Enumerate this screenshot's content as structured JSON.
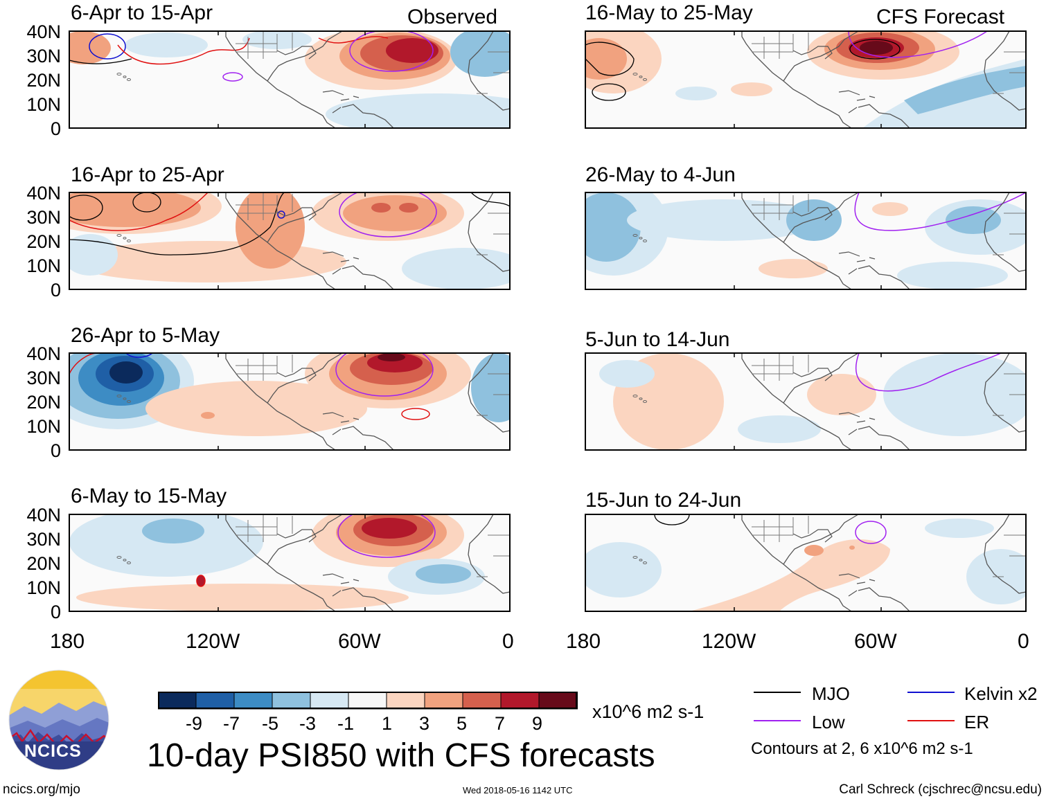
{
  "panels_left": [
    {
      "period": "6-Apr to 15-Apr",
      "tag": "Observed"
    },
    {
      "period": "16-Apr to 25-Apr",
      "tag": ""
    },
    {
      "period": "26-Apr to 5-May",
      "tag": ""
    },
    {
      "period": "6-May to 15-May",
      "tag": ""
    }
  ],
  "panels_right": [
    {
      "period": "16-May to 25-May",
      "tag": "CFS Forecast"
    },
    {
      "period": "26-May to 4-Jun",
      "tag": ""
    },
    {
      "period": "5-Jun to 14-Jun",
      "tag": ""
    },
    {
      "period": "15-Jun to 24-Jun",
      "tag": ""
    }
  ],
  "lat_labels": [
    "40N",
    "30N",
    "20N",
    "10N",
    "0"
  ],
  "lon_labels": [
    "180",
    "120W",
    "60W",
    "0"
  ],
  "colorbar": {
    "labels": [
      "-9",
      "-7",
      "-5",
      "-3",
      "-1",
      "1",
      "3",
      "5",
      "7",
      "9"
    ],
    "units": "x10^6 m2 s-1",
    "colors": [
      "#0b2a5c",
      "#1f5fa6",
      "#3d8cc4",
      "#8fc1de",
      "#d6e8f3",
      "#f7f7f7",
      "#fbd5c0",
      "#f1a27f",
      "#d5604d",
      "#b2182b",
      "#670a1a"
    ]
  },
  "legend": {
    "items": [
      {
        "label": "MJO",
        "color": "#000000"
      },
      {
        "label": "Kelvin x2",
        "color": "#1010d0"
      },
      {
        "label": "Low",
        "color": "#a020f0"
      },
      {
        "label": "ER",
        "color": "#e01010"
      }
    ],
    "note": "Contours at 2, 6 x10^6 m2 s-1"
  },
  "main_title": "10-day PSI850 with CFS forecasts",
  "logo_text": "NCICS",
  "footer": {
    "url": "ncics.org/mjo",
    "timestamp": "Wed 2018-05-16 1142 UTC",
    "credit": "Carl Schreck (cjschrec@ncsu.edu)"
  }
}
